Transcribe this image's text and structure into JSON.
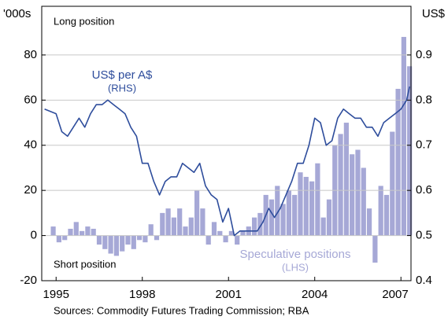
{
  "chart_data": {
    "type": "bar-line",
    "left_unit": "'000s",
    "right_unit": "US$",
    "annotations": [
      "Long position",
      "Short position",
      "US$ per A$",
      "(RHS)",
      "Speculative positions",
      "(LHS)"
    ],
    "source": "Sources: Commodity Futures Trading Commission; RBA",
    "xlim": [
      1994.5,
      2007.35
    ],
    "xticks": [
      1995,
      1998,
      2001,
      2004,
      2007
    ],
    "ylim": [
      -20,
      100
    ],
    "yticks": [
      -20,
      0,
      20,
      40,
      60,
      80
    ],
    "y2lim": [
      0.4,
      1.0
    ],
    "y2ticks": [
      0.4,
      0.5,
      0.6,
      0.7,
      0.8,
      0.9
    ],
    "grid": true,
    "series": [
      {
        "name": "Speculative positions",
        "type": "bar",
        "axis": "y",
        "color": "#a6a8d6",
        "x": [
          1994.9,
          1995.1,
          1995.3,
          1995.5,
          1995.7,
          1995.9,
          1996.1,
          1996.3,
          1996.5,
          1996.7,
          1996.9,
          1997.1,
          1997.3,
          1997.5,
          1997.7,
          1997.9,
          1998.1,
          1998.3,
          1998.5,
          1998.7,
          1998.9,
          1999.1,
          1999.3,
          1999.5,
          1999.7,
          1999.9,
          2000.1,
          2000.3,
          2000.5,
          2000.7,
          2000.9,
          2001.1,
          2001.3,
          2001.5,
          2001.7,
          2001.9,
          2002.1,
          2002.3,
          2002.5,
          2002.7,
          2002.9,
          2003.1,
          2003.3,
          2003.5,
          2003.7,
          2003.9,
          2004.1,
          2004.3,
          2004.5,
          2004.7,
          2004.9,
          2005.1,
          2005.3,
          2005.5,
          2005.7,
          2005.9,
          2006.1,
          2006.3,
          2006.5,
          2006.7,
          2006.9,
          2007.1,
          2007.3
        ],
        "values": [
          4,
          -3,
          -2,
          3,
          6,
          2,
          4,
          3,
          -4,
          -6,
          -8,
          -9,
          -7,
          -4,
          -6,
          -2,
          -3,
          5,
          -2,
          10,
          12,
          8,
          12,
          4,
          8,
          20,
          12,
          -4,
          6,
          2,
          -3,
          2,
          -4,
          2,
          4,
          8,
          10,
          18,
          16,
          22,
          14,
          20,
          18,
          28,
          26,
          24,
          32,
          8,
          16,
          40,
          45,
          50,
          36,
          38,
          30,
          12,
          -12,
          22,
          18,
          46,
          65,
          88,
          75
        ]
      },
      {
        "name": "US$ per A$",
        "type": "line",
        "axis": "y2",
        "color": "#2e4d9c",
        "x": [
          1994.6,
          1995.0,
          1995.2,
          1995.4,
          1995.6,
          1995.8,
          1996.0,
          1996.2,
          1996.4,
          1996.6,
          1996.8,
          1997.0,
          1997.2,
          1997.4,
          1997.6,
          1997.8,
          1998.0,
          1998.2,
          1998.4,
          1998.6,
          1998.8,
          1999.0,
          1999.2,
          1999.4,
          1999.6,
          1999.8,
          2000.0,
          2000.2,
          2000.4,
          2000.6,
          2000.8,
          2001.0,
          2001.2,
          2001.4,
          2001.6,
          2001.8,
          2002.0,
          2002.2,
          2002.4,
          2002.6,
          2002.8,
          2003.0,
          2003.2,
          2003.4,
          2003.6,
          2003.8,
          2004.0,
          2004.2,
          2004.4,
          2004.6,
          2004.8,
          2005.0,
          2005.2,
          2005.4,
          2005.6,
          2005.8,
          2006.0,
          2006.2,
          2006.4,
          2006.6,
          2006.8,
          2007.0,
          2007.2,
          2007.3
        ],
        "values": [
          0.78,
          0.77,
          0.73,
          0.72,
          0.74,
          0.76,
          0.74,
          0.77,
          0.79,
          0.79,
          0.8,
          0.79,
          0.78,
          0.77,
          0.74,
          0.72,
          0.66,
          0.66,
          0.62,
          0.59,
          0.62,
          0.63,
          0.63,
          0.66,
          0.65,
          0.64,
          0.66,
          0.61,
          0.59,
          0.58,
          0.53,
          0.56,
          0.5,
          0.51,
          0.51,
          0.51,
          0.51,
          0.53,
          0.56,
          0.54,
          0.56,
          0.59,
          0.62,
          0.66,
          0.66,
          0.7,
          0.76,
          0.75,
          0.7,
          0.71,
          0.76,
          0.78,
          0.77,
          0.76,
          0.76,
          0.74,
          0.74,
          0.72,
          0.75,
          0.76,
          0.77,
          0.78,
          0.8,
          0.83
        ]
      }
    ]
  }
}
